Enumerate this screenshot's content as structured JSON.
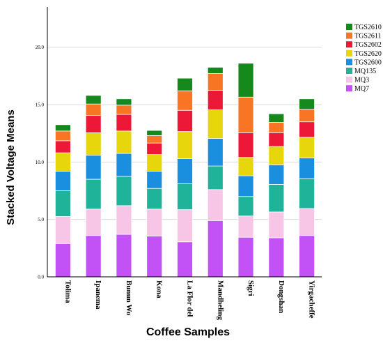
{
  "chart_data": {
    "type": "bar",
    "stacked": true,
    "xlabel": "Coffee Samples",
    "ylabel": "Stacked Voltage Means",
    "ylim": [
      0,
      23.5
    ],
    "yticks": [
      "0.0",
      "5.0",
      "10.0",
      "15.0",
      "20.0"
    ],
    "grid": true,
    "legend_position": "right",
    "categories": [
      "Tolima",
      "Ipanema",
      "Bunun Wo",
      "Kona",
      "La Flor del",
      "Mandheling",
      "Sigri",
      "Dongshan",
      "Yirgacheffe"
    ],
    "series": [
      {
        "name": "MQ7",
        "color": "#c252f5",
        "values": [
          2.9,
          3.6,
          3.7,
          3.55,
          3.05,
          4.9,
          3.45,
          3.4,
          3.6
        ]
      },
      {
        "name": "MQ3",
        "color": "#f7c6e6",
        "values": [
          2.35,
          2.3,
          2.5,
          2.35,
          2.8,
          2.7,
          1.85,
          2.25,
          2.35
        ]
      },
      {
        "name": "MQ135",
        "color": "#1fb39a",
        "values": [
          2.25,
          2.6,
          2.55,
          1.8,
          2.25,
          2.05,
          1.7,
          2.4,
          2.6
        ]
      },
      {
        "name": "TGS2600",
        "color": "#1a8fe0",
        "values": [
          1.7,
          2.1,
          2.0,
          1.5,
          2.2,
          2.4,
          1.8,
          1.7,
          1.8
        ]
      },
      {
        "name": "TGS2620",
        "color": "#e8d60c",
        "values": [
          1.6,
          1.95,
          1.95,
          1.45,
          2.35,
          2.5,
          1.6,
          1.6,
          1.8
        ]
      },
      {
        "name": "TGS2602",
        "color": "#ed1738",
        "values": [
          1.05,
          1.5,
          1.45,
          1.0,
          1.85,
          1.7,
          2.15,
          1.2,
          1.35
        ]
      },
      {
        "name": "TGS2611",
        "color": "#f87623",
        "values": [
          0.85,
          1.0,
          0.8,
          0.65,
          1.7,
          1.45,
          3.1,
          0.9,
          1.1
        ]
      },
      {
        "name": "TGS2610",
        "color": "#15891c",
        "values": [
          0.55,
          0.75,
          0.55,
          0.45,
          1.1,
          0.55,
          2.95,
          0.75,
          0.9
        ]
      }
    ],
    "legend_order": [
      "TGS2610",
      "TGS2611",
      "TGS2602",
      "TGS2620",
      "TGS2600",
      "MQ135",
      "MQ3",
      "MQ7"
    ]
  }
}
